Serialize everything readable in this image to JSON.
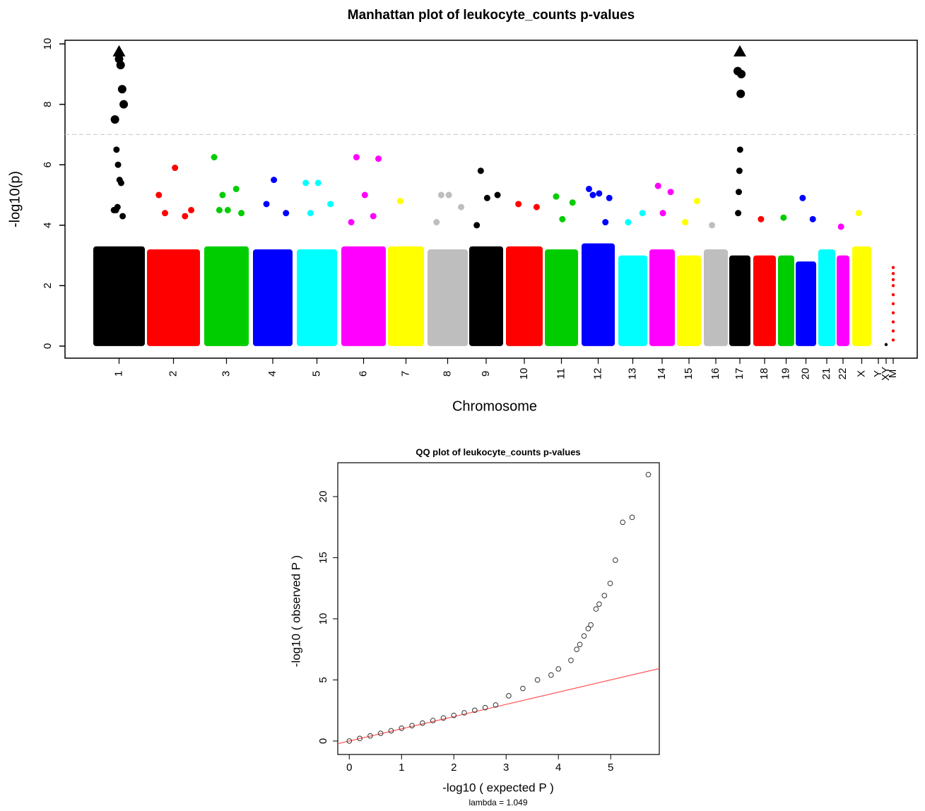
{
  "chart_data": [
    {
      "type": "manhattan",
      "title": "Manhattan plot of  leukocyte_counts  p-values",
      "y_label": "-log10(p)",
      "x_label": "Chromosome",
      "categories": [
        "1",
        "2",
        "3",
        "4",
        "5",
        "6",
        "7",
        "8",
        "9",
        "10",
        "11",
        "12",
        "13",
        "14",
        "15",
        "16",
        "17",
        "18",
        "19",
        "20",
        "21",
        "22",
        "X",
        "Y",
        "XY",
        "M"
      ],
      "colors": [
        "#000000",
        "#ff0000",
        "#00cd00",
        "#0000ff",
        "#00ffff",
        "#ff00ff",
        "#ffff00",
        "#bebebe",
        "#000000",
        "#ff0000",
        "#00cd00",
        "#0000ff",
        "#00ffff",
        "#ff00ff",
        "#ffff00",
        "#bebebe",
        "#000000",
        "#ff0000",
        "#00cd00",
        "#0000ff",
        "#00ffff",
        "#ff00ff",
        "#ffff00",
        "#bebebe",
        "#000000",
        "#ff0000"
      ],
      "bulk": [
        3.3,
        3.2,
        3.3,
        3.2,
        3.2,
        3.3,
        3.3,
        3.2,
        3.3,
        3.3,
        3.2,
        3.4,
        3.0,
        3.2,
        3.0,
        3.2,
        3.0,
        3.0,
        3.0,
        2.8,
        3.2,
        3.0,
        3.3,
        null,
        null,
        null
      ],
      "peaks": [
        [
          4.5,
          4.3,
          5.4,
          5.5,
          6.0,
          6.5,
          7.5,
          8.0,
          8.5,
          9.3,
          9.5,
          4.6,
          4.5
        ],
        [
          4.4,
          4.5,
          5.9,
          5.0,
          4.3
        ],
        [
          4.5,
          4.4,
          4.5,
          6.25,
          5.2,
          5.0
        ],
        [
          4.7,
          4.4,
          5.5
        ],
        [
          4.4,
          4.7,
          5.4,
          5.4
        ],
        [
          6.25,
          6.2,
          5.0,
          4.1,
          4.3
        ],
        [
          4.8
        ],
        [
          5.0,
          4.6,
          5.0,
          4.1
        ],
        [
          5.8,
          5.0,
          4.9,
          4.0
        ],
        [
          4.7,
          4.6
        ],
        [
          4.95,
          4.75,
          4.2
        ],
        [
          5.0,
          4.9,
          5.05,
          5.2,
          4.1
        ],
        [
          4.1,
          4.4
        ],
        [
          5.3,
          5.1,
          4.4
        ],
        [
          4.1,
          4.8
        ],
        [
          4.0
        ],
        [
          9.1,
          9.0,
          8.35,
          6.5,
          5.8,
          5.1,
          4.4
        ],
        [
          4.2
        ],
        [
          4.25
        ],
        [
          4.9,
          4.2
        ],
        [],
        [
          3.95
        ],
        [
          4.4
        ],
        [],
        [
          0.05
        ],
        [
          2.6,
          2.4,
          2.2,
          2.0,
          1.7,
          1.4,
          1.1,
          0.8,
          0.5,
          0.2
        ]
      ],
      "triangles": [
        9.75,
        null,
        null,
        null,
        null,
        null,
        null,
        null,
        null,
        null,
        null,
        null,
        null,
        null,
        null,
        null,
        9.75,
        null,
        null,
        null,
        null,
        null,
        null,
        null,
        null,
        null
      ],
      "threshold": 7,
      "threshold_color": "#cccccc",
      "ylim": [
        -0.4,
        10.12
      ],
      "yticks": [
        0,
        2,
        4,
        6,
        8,
        10
      ]
    },
    {
      "type": "scatter",
      "title": "QQ plot of  leukocyte_counts  p-values",
      "x_label": "-log10 ( expected  P )",
      "y_label": "-log10 ( observed  P )",
      "annotation": "lambda = 1.049",
      "x": [
        0,
        0.2,
        0.4,
        0.6,
        0.8,
        1.0,
        1.2,
        1.4,
        1.6,
        1.8,
        2.0,
        2.2,
        2.4,
        2.6,
        2.8,
        3.05,
        3.32,
        3.6,
        3.86,
        4.0,
        4.24,
        4.35,
        4.41,
        4.49,
        4.57,
        4.62,
        4.72,
        4.78,
        4.88,
        4.99,
        5.09,
        5.23,
        5.41,
        5.72
      ],
      "y": [
        0,
        0.21,
        0.42,
        0.63,
        0.84,
        1.05,
        1.26,
        1.47,
        1.68,
        1.89,
        2.1,
        2.31,
        2.52,
        2.73,
        2.95,
        3.7,
        4.3,
        5.0,
        5.4,
        5.9,
        6.6,
        7.5,
        7.9,
        8.6,
        9.2,
        9.5,
        10.8,
        11.2,
        11.9,
        12.9,
        14.8,
        17.9,
        18.3,
        21.8
      ],
      "marker_color": "#333333",
      "reference_line": {
        "slope": 1,
        "intercept": 0,
        "color": "#ff5555"
      },
      "xlim": [
        -0.22,
        5.93
      ],
      "ylim": [
        -1.1,
        22.77
      ],
      "xticks": [
        0,
        1,
        2,
        3,
        4,
        5
      ],
      "yticks": [
        0,
        5,
        10,
        15,
        20
      ]
    }
  ]
}
